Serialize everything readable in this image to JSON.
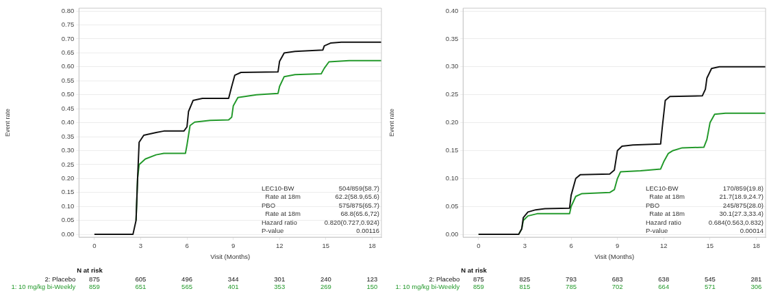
{
  "chart_data": [
    {
      "type": "line",
      "xlabel": "Visit (Months)",
      "ylabel": "Event rate",
      "xlim": [
        -1,
        18.6
      ],
      "xticks": [
        0,
        3,
        6,
        9,
        12,
        15,
        18
      ],
      "ylim": [
        -0.01,
        0.81
      ],
      "yticks": [
        {
          "value": 0,
          "label": "0.00"
        },
        {
          "value": 0.05,
          "label": "0.05"
        },
        {
          "value": 0.1,
          "label": "0.10"
        },
        {
          "value": 0.15,
          "label": "0.15"
        },
        {
          "value": 0.2,
          "label": "0.20"
        },
        {
          "value": 0.25,
          "label": "0.25"
        },
        {
          "value": 0.3,
          "label": "0.30"
        },
        {
          "value": 0.35,
          "label": "0.35"
        },
        {
          "value": 0.4,
          "label": "0.40"
        },
        {
          "value": 0.45,
          "label": "0.45"
        },
        {
          "value": 0.5,
          "label": "0.50"
        },
        {
          "value": 0.55,
          "label": "0.55"
        },
        {
          "value": 0.6,
          "label": "0.60"
        },
        {
          "value": 0.65,
          "label": "0.65"
        },
        {
          "value": 0.7,
          "label": "0.70"
        },
        {
          "value": 0.75,
          "label": "0.75"
        },
        {
          "value": 0.8,
          "label": "0.80"
        }
      ],
      "grid": "y",
      "legend": false,
      "marker": "none",
      "line_style": "solid",
      "series": [
        {
          "name": "2: Placebo",
          "color": "#111111",
          "x": [
            0,
            2.5,
            2.7,
            2.8,
            2.9,
            3.2,
            4,
            4.5,
            5.8,
            6,
            6.1,
            6.4,
            7,
            8.7,
            8.9,
            9.1,
            9.5,
            11.9,
            12,
            12.3,
            13,
            14.8,
            14.9,
            15.3,
            16,
            18.6
          ],
          "values": [
            0,
            0,
            0.05,
            0.2,
            0.33,
            0.355,
            0.365,
            0.37,
            0.37,
            0.385,
            0.44,
            0.48,
            0.487,
            0.487,
            0.53,
            0.57,
            0.58,
            0.582,
            0.62,
            0.65,
            0.655,
            0.66,
            0.675,
            0.685,
            0.688,
            0.688
          ]
        },
        {
          "name": "1: 10 mg/kg bi-Weekly",
          "color": "#22992a",
          "x": [
            2.7,
            2.8,
            2.9,
            3.3,
            4,
            4.5,
            5.9,
            6,
            6.2,
            6.5,
            7.5,
            8.7,
            8.9,
            9,
            9.3,
            10.5,
            11.9,
            12,
            12.3,
            13,
            14.7,
            14.9,
            15.2,
            16.5,
            18.6
          ],
          "values": [
            0.05,
            0.2,
            0.25,
            0.27,
            0.285,
            0.29,
            0.29,
            0.32,
            0.39,
            0.402,
            0.408,
            0.41,
            0.42,
            0.46,
            0.49,
            0.5,
            0.505,
            0.53,
            0.565,
            0.572,
            0.575,
            0.595,
            0.618,
            0.622,
            0.622
          ]
        }
      ],
      "annotations": [
        "N at risk",
        "875 605 496 344 301 240 123",
        "859 651 565 401 353 269 150",
        "LEC10-BW\t504/859(58.7)",
        "  Rate at 18m\t62.2(58.9,65.6)",
        "PBO\t575/875(65.7)",
        "  Rate at 18m\t68.8(65.6,72)",
        "Hazard ratio\t0.820(0.727,0.924)",
        "P-value\t0.00116"
      ]
    },
    {
      "type": "line",
      "xlabel": "Visit (Months)",
      "ylabel": "Event rate",
      "xlim": [
        -1,
        18.6
      ],
      "xticks": [
        0,
        3,
        6,
        9,
        12,
        15,
        18
      ],
      "ylim": [
        -0.005,
        0.405
      ],
      "yticks": [
        {
          "value": 0,
          "label": "0.00"
        },
        {
          "value": 0.05,
          "label": "0.05"
        },
        {
          "value": 0.1,
          "label": "0.10"
        },
        {
          "value": 0.15,
          "label": "0.15"
        },
        {
          "value": 0.2,
          "label": "0.20"
        },
        {
          "value": 0.25,
          "label": "0.25"
        },
        {
          "value": 0.3,
          "label": "0.30"
        },
        {
          "value": 0.35,
          "label": "0.35"
        },
        {
          "value": 0.4,
          "label": "0.40"
        }
      ],
      "grid": "y",
      "legend": false,
      "marker": "none",
      "line_style": "solid",
      "series": [
        {
          "name": "2: Placebo",
          "color": "#111111",
          "x": [
            0,
            2.6,
            2.8,
            2.9,
            3.2,
            3.7,
            4.3,
            5.9,
            6,
            6.3,
            6.6,
            8.5,
            8.8,
            9,
            9.3,
            10,
            11.8,
            11.9,
            12.1,
            12.4,
            14.5,
            14.7,
            14.8,
            15.1,
            15.6,
            18.6
          ],
          "values": [
            0,
            0,
            0.01,
            0.03,
            0.04,
            0.044,
            0.046,
            0.047,
            0.07,
            0.1,
            0.107,
            0.108,
            0.115,
            0.15,
            0.158,
            0.16,
            0.162,
            0.19,
            0.24,
            0.247,
            0.248,
            0.26,
            0.28,
            0.297,
            0.3,
            0.3
          ]
        },
        {
          "name": "1: 10 mg/kg bi-Weekly",
          "color": "#22992a",
          "x": [
            0,
            2.6,
            2.8,
            2.9,
            3.2,
            3.8,
            5.9,
            6,
            6.3,
            6.7,
            8.5,
            8.8,
            9,
            9.2,
            10.5,
            11.8,
            12,
            12.3,
            12.6,
            13.2,
            14.6,
            14.8,
            15,
            15.3,
            16,
            18.6
          ],
          "values": [
            0,
            0,
            0.01,
            0.025,
            0.033,
            0.037,
            0.037,
            0.05,
            0.068,
            0.073,
            0.075,
            0.08,
            0.1,
            0.112,
            0.114,
            0.117,
            0.13,
            0.145,
            0.15,
            0.155,
            0.156,
            0.17,
            0.2,
            0.215,
            0.217,
            0.217
          ]
        }
      ],
      "annotations": [
        "N at risk",
        "875 825 793 683 638 545 281",
        "859 815 785 702 664 571 306",
        "LEC10-BW\t170/859(19.8)",
        "  Rate at 18m\t21.7(18.9,24.7)",
        "PBO\t245/875(28.0)",
        "  Rate at 18m\t30.1(27.3,33.4)",
        "Hazard ratio\t0.684(0.563,0.832)",
        "P-value\t0.00014"
      ]
    }
  ]
}
